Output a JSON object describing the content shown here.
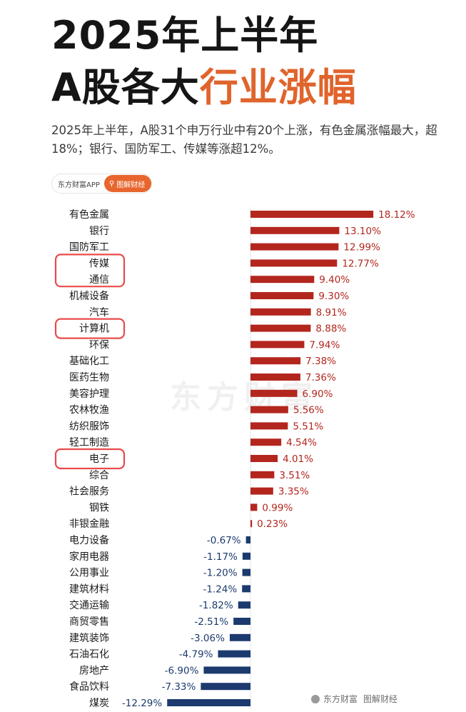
{
  "header": {
    "title_line1": "2025年上半年",
    "title_line2_prefix": "A股各大",
    "title_line2_accent": "行业涨幅",
    "subtitle": "2025年上半年，A股31个申万行业中有20个上涨，有色金属涨幅最大，超18%；银行、国防军工、传媒等涨超12%。"
  },
  "source_badge": {
    "source": "东方财富APP",
    "pill_icon": "search-icon",
    "pill_label": "图解财经"
  },
  "watermark": "东方财富",
  "footer": {
    "brand": "东方财富",
    "column": "图解财经"
  },
  "colors": {
    "positive": "#b3261e",
    "negative": "#1c3a6e",
    "accent": "#e0642b",
    "highlight_box": "#e94b4b"
  },
  "chart_data": {
    "type": "bar",
    "orientation": "horizontal",
    "title": "",
    "xlabel": "",
    "ylabel": "",
    "unit": "%",
    "highlighted": [
      "传媒",
      "通信",
      "计算机",
      "电子"
    ],
    "categories": [
      "有色金属",
      "银行",
      "国防军工",
      "传媒",
      "通信",
      "机械设备",
      "汽车",
      "计算机",
      "环保",
      "基础化工",
      "医药生物",
      "美容护理",
      "农林牧渔",
      "纺织服饰",
      "轻工制造",
      "电子",
      "综合",
      "社会服务",
      "钢铁",
      "非银金融",
      "电力设备",
      "家用电器",
      "公用事业",
      "建筑材料",
      "交通运输",
      "商贸零售",
      "建筑装饰",
      "石油石化",
      "房地产",
      "食品饮料",
      "煤炭"
    ],
    "values": [
      18.12,
      13.1,
      12.99,
      12.77,
      9.4,
      9.3,
      8.91,
      8.88,
      7.94,
      7.38,
      7.36,
      6.9,
      5.56,
      5.51,
      4.54,
      4.01,
      3.51,
      3.35,
      0.99,
      0.23,
      -0.67,
      -1.17,
      -1.2,
      -1.24,
      -1.82,
      -2.51,
      -3.06,
      -4.79,
      -6.9,
      -7.33,
      -12.29
    ],
    "labels": [
      "18.12%",
      "13.10%",
      "12.99%",
      "12.77%",
      "9.40%",
      "9.30%",
      "8.91%",
      "8.88%",
      "7.94%",
      "7.38%",
      "7.36%",
      "6.90%",
      "5.56%",
      "5.51%",
      "4.54%",
      "4.01%",
      "3.51%",
      "3.35%",
      "0.99%",
      "0.23%",
      "-0.67%",
      "-1.17%",
      "-1.20%",
      "-1.24%",
      "-1.82%",
      "-2.51%",
      "-3.06%",
      "-4.79%",
      "-6.90%",
      "-7.33%",
      "-12.29%"
    ]
  }
}
